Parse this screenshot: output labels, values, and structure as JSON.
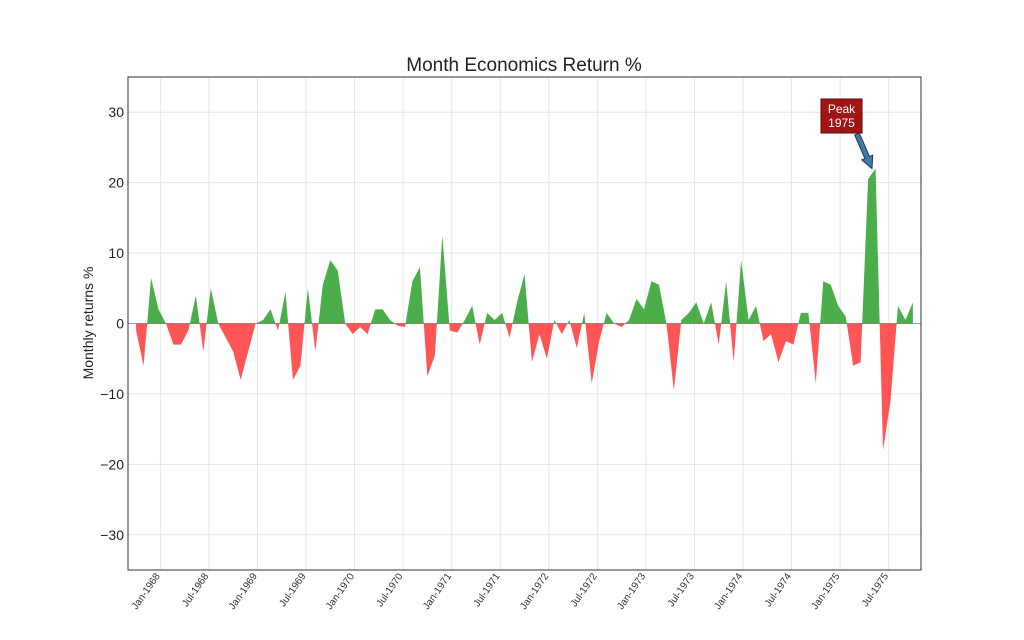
{
  "chart_data": {
    "type": "area",
    "title": "Month Economics Return %",
    "xlabel": "",
    "ylabel": "Monthly returns %",
    "ylim": [
      -35,
      35
    ],
    "yticks": [
      -30,
      -20,
      -10,
      0,
      10,
      20,
      30
    ],
    "grid": true,
    "legend": "none",
    "x_tick_labels": [
      "Jan-1968",
      "Jul-1968",
      "Jan-1969",
      "Jul-1969",
      "Jan-1970",
      "Jul-1970",
      "Jan-1971",
      "Jul-1971",
      "Jan-1972",
      "Jul-1972",
      "Jan-1973",
      "Jul-1973",
      "Jan-1974",
      "Jul-1974",
      "Jan-1975",
      "Jul-1975"
    ],
    "x_tick_months": [
      4,
      10,
      16,
      22,
      28,
      34,
      40,
      46,
      52,
      58,
      64,
      70,
      76,
      82,
      88,
      94
    ],
    "x_range": [
      0,
      98
    ],
    "values": [
      -1,
      -6,
      6.5,
      2,
      0,
      -3,
      -3,
      -1,
      4,
      -4,
      5,
      0,
      -2,
      -4,
      -8,
      -4,
      0,
      0.5,
      2,
      -1,
      4.5,
      -8,
      -6,
      5,
      -4,
      5.5,
      9,
      7.5,
      0,
      -1.5,
      -0.5,
      -1.5,
      2,
      2,
      0.5,
      -0.3,
      -0.5,
      6,
      8,
      -7.5,
      -4.5,
      12.5,
      -1,
      -1.3,
      0.5,
      2.5,
      -3,
      1.5,
      0.5,
      1.5,
      -2,
      3,
      7,
      -5.5,
      -1.5,
      -5,
      0.5,
      -1.5,
      0.5,
      -3.5,
      1.5,
      -8.5,
      -2.5,
      1.5,
      0,
      -0.5,
      0.5,
      3.5,
      2,
      6,
      5.5,
      0,
      -9.5,
      0.5,
      1.5,
      3,
      0,
      3,
      -3,
      6,
      -5.5,
      9,
      0.5,
      2.5,
      -2.5,
      -1.5,
      -5.5,
      -2.5,
      -3,
      1.5,
      1.5,
      -8.5,
      6,
      5.5,
      2.5,
      1,
      -6,
      -5.5,
      20.5,
      22,
      -18,
      -11,
      2.5,
      0.5,
      3
    ],
    "annotations": [
      {
        "text_line1": "Peak",
        "text_line2": "1975",
        "x": 101,
        "y": 22
      }
    ],
    "colors": {
      "positive": "#2ca02c",
      "negative": "#ff2b2b",
      "annotation_box": "#a31515",
      "arrow": "#3e7ba8"
    }
  }
}
